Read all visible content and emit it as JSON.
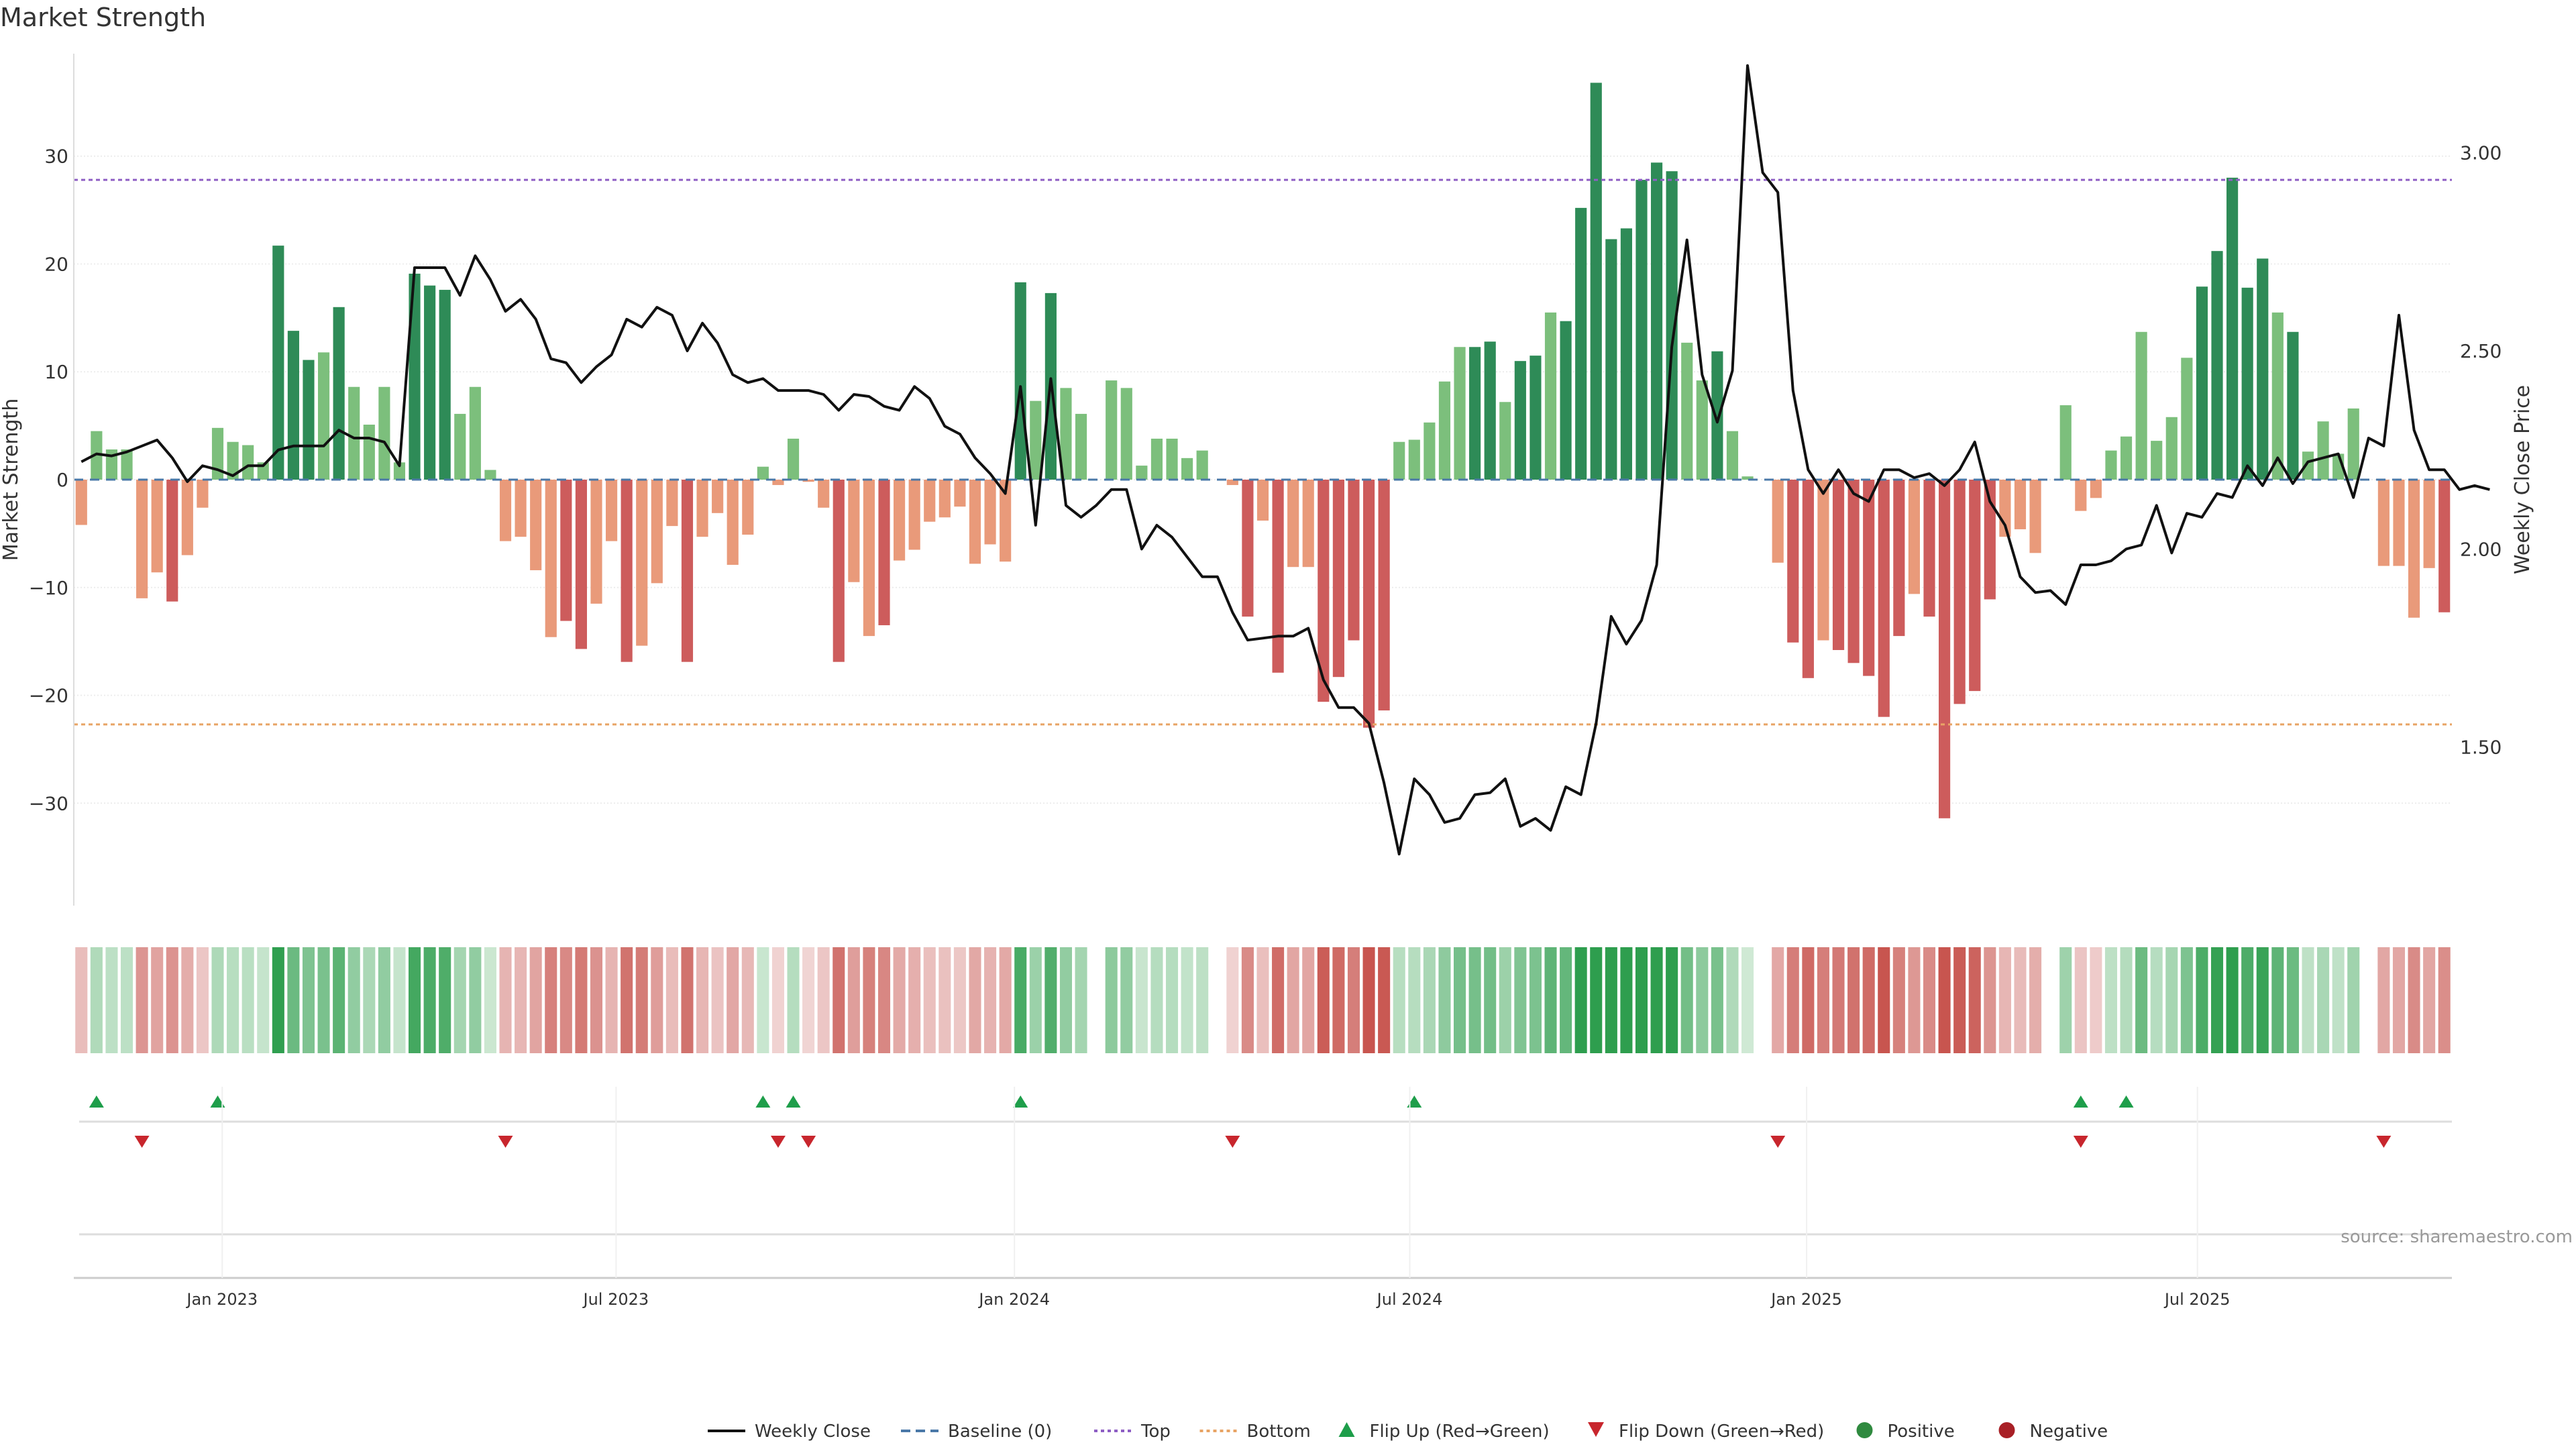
{
  "chart_data": {
    "type": "bar",
    "title": "Market Strength",
    "ylabel": "Market Strength",
    "y2label": "Weekly Close Price",
    "ylim": [
      -39.5,
      39.5
    ],
    "y2lim": [
      1.1,
      3.25
    ],
    "yticks": [
      30,
      20,
      10,
      0,
      -10,
      -20,
      -30
    ],
    "yticklabels": [
      "30",
      "20",
      "10",
      "0",
      "−10",
      "−20",
      "−30"
    ],
    "y2ticks": [
      3.0,
      2.5,
      2.0,
      1.5
    ],
    "y2ticklabels": [
      "3.00",
      "2.50",
      "2.00",
      "1.50"
    ],
    "top_line": 27.8,
    "bottom_line": -22.7,
    "xticks": [
      {
        "week": 9.3,
        "label": "Jan 2023"
      },
      {
        "week": 35.3,
        "label": "Jul 2023"
      },
      {
        "week": 61.6,
        "label": "Jan 2024"
      },
      {
        "week": 87.7,
        "label": "Jul 2024"
      },
      {
        "week": 113.9,
        "label": "Jan 2025"
      },
      {
        "week": 139.7,
        "label": "Jul 2025"
      }
    ],
    "strength": [
      -4.2,
      4.5,
      2.8,
      2.8,
      -11,
      -8.6,
      -11.3,
      -7,
      -2.6,
      4.8,
      3.5,
      3.2,
      1.6,
      21.7,
      13.8,
      11.1,
      11.8,
      16,
      8.6,
      5.1,
      8.6,
      1.6,
      19.1,
      18,
      17.6,
      6.1,
      8.6,
      0.9,
      -5.7,
      -5.3,
      -8.4,
      -14.6,
      -13.1,
      -15.7,
      -11.5,
      -5.7,
      -16.9,
      -15.4,
      -9.6,
      -4.3,
      -16.9,
      -5.3,
      -3.1,
      -7.9,
      -5.1,
      1.2,
      -0.5,
      3.8,
      -0.2,
      -2.6,
      -16.9,
      -9.5,
      -14.5,
      -13.5,
      -7.5,
      -6.5,
      -3.9,
      -3.5,
      -2.5,
      -7.8,
      -6,
      -7.6,
      18.3,
      7.3,
      17.3,
      8.5,
      6.1,
      0,
      9.2,
      8.5,
      1.3,
      3.8,
      3.8,
      2,
      2.7,
      0,
      -0.5,
      -12.7,
      -3.8,
      -17.9,
      -8.1,
      -8.1,
      -20.6,
      -18.3,
      -14.9,
      -23,
      -21.4,
      3.5,
      3.7,
      5.3,
      9.1,
      12.3,
      12.3,
      12.8,
      7.2,
      11,
      11.5,
      15.5,
      14.7,
      25.2,
      36.8,
      22.3,
      23.3,
      27.8,
      29.4,
      28.6,
      12.7,
      9.2,
      11.9,
      4.5,
      0.3,
      0,
      -7.7,
      -15.1,
      -18.4,
      -14.9,
      -15.8,
      -17,
      -18.2,
      -22,
      -14.5,
      -10.6,
      -12.7,
      -31.4,
      -20.8,
      -19.6,
      -11.1,
      -5.3,
      -4.6,
      -6.8,
      0,
      6.9,
      -2.9,
      -1.7,
      2.7,
      4,
      13.7,
      3.6,
      5.8,
      11.3,
      17.9,
      21.2,
      28,
      17.8,
      20.5,
      15.5,
      13.7,
      2.6,
      5.4,
      2.4,
      6.6,
      0,
      -8,
      -8,
      -12.8,
      -8.2,
      -12.3
    ],
    "price": [
      2.22,
      2.24,
      2.235,
      2.245,
      2.26,
      2.275,
      2.23,
      2.17,
      2.21,
      2.2,
      2.185,
      2.21,
      2.21,
      2.25,
      2.26,
      2.26,
      2.26,
      2.3,
      2.28,
      2.28,
      2.27,
      2.21,
      2.71,
      2.71,
      2.71,
      2.64,
      2.74,
      2.68,
      2.6,
      2.63,
      2.58,
      2.48,
      2.47,
      2.42,
      2.46,
      2.49,
      2.58,
      2.56,
      2.61,
      2.59,
      2.5,
      2.57,
      2.52,
      2.44,
      2.42,
      2.43,
      2.4,
      2.4,
      2.4,
      2.39,
      2.35,
      2.39,
      2.385,
      2.36,
      2.35,
      2.41,
      2.38,
      2.31,
      2.29,
      2.23,
      2.19,
      2.14,
      2.41,
      2.06,
      2.43,
      2.11,
      2.08,
      2.11,
      2.15,
      2.15,
      2,
      2.06,
      2.03,
      1.98,
      1.93,
      1.93,
      1.84,
      1.77,
      1.775,
      1.78,
      1.78,
      1.8,
      1.67,
      1.6,
      1.6,
      1.56,
      1.41,
      1.23,
      1.42,
      1.38,
      1.31,
      1.32,
      1.38,
      1.385,
      1.42,
      1.3,
      1.32,
      1.29,
      1.4,
      1.38,
      1.56,
      1.83,
      1.76,
      1.82,
      1.96,
      2.51,
      2.78,
      2.44,
      2.32,
      2.45,
      3.22,
      2.95,
      2.9,
      2.4,
      2.2,
      2.14,
      2.2,
      2.14,
      2.12,
      2.2,
      2.2,
      2.18,
      2.19,
      2.16,
      2.2,
      2.27,
      2.12,
      2.06,
      1.93,
      1.89,
      1.895,
      1.86,
      1.96,
      1.96,
      1.97,
      2,
      2.01,
      2.11,
      1.99,
      2.09,
      2.08,
      2.14,
      2.13,
      2.21,
      2.16,
      2.23,
      2.165,
      2.22,
      2.23,
      2.24,
      2.13,
      2.28,
      2.26,
      2.59,
      2.3,
      2.2,
      2.2,
      2.15,
      2.16,
      2.15
    ],
    "flip_up_weeks": [
      1,
      9,
      45,
      47,
      62,
      88,
      132,
      135
    ],
    "flip_down_weeks": [
      4,
      28,
      46,
      48,
      76,
      112,
      132,
      152
    ],
    "legend": {
      "placement": "bottom-center",
      "entries": [
        {
          "label": "Weekly Close",
          "kind": "line-solid",
          "color": "#111111"
        },
        {
          "label": "Baseline (0)",
          "kind": "line-dashed",
          "color": "#4a78a8"
        },
        {
          "label": "Top",
          "kind": "line-dotted",
          "color": "#8e5ec4"
        },
        {
          "label": "Bottom",
          "kind": "line-dotted",
          "color": "#e8a465"
        },
        {
          "label": "Flip Up (Red→Green)",
          "kind": "triangle-up",
          "color": "#1e9e4a"
        },
        {
          "label": "Flip Down (Green→Red)",
          "kind": "triangle-down",
          "color": "#c8262d"
        },
        {
          "label": "Positive",
          "kind": "circle",
          "color": "#2f8a3f"
        },
        {
          "label": "Negative",
          "kind": "circle",
          "color": "#a82026"
        }
      ]
    },
    "source_note": "source: sharemaestro.com"
  },
  "colors": {
    "pos_strong": "#2e8b57",
    "pos_weak": "#7cbf7c",
    "neg_strong": "#cd5c5c",
    "neg_weak": "#e99a7a",
    "price_line": "#111111",
    "top_line": "#8e5ec4",
    "bottom_line": "#e8a465",
    "baseline": "#4a78a8",
    "flip_up": "#1e9e4a",
    "flip_down": "#c8262d"
  }
}
